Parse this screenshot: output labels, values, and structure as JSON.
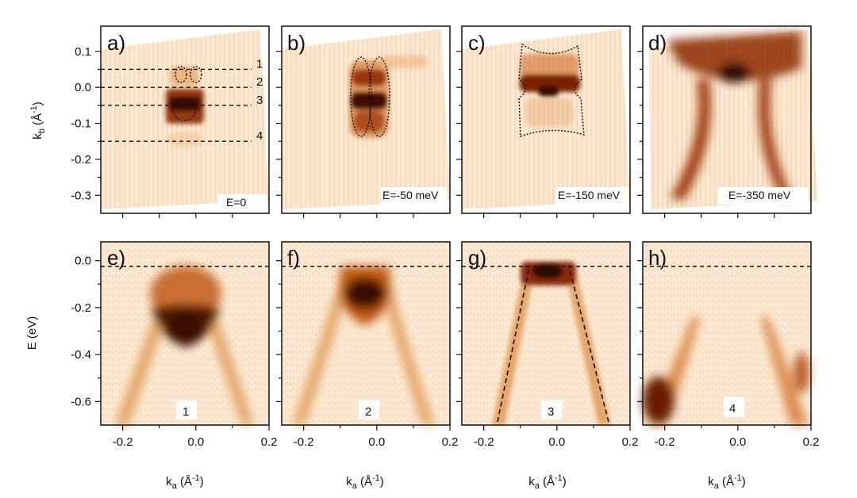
{
  "figure": {
    "caption": "",
    "colors": {
      "dark": "#3a0c04",
      "mid": "#b44a0c",
      "light": "#fbe2c4",
      "bg": "#fdf3e6"
    }
  },
  "chart_data": [
    {
      "type": "heatmap",
      "panel": "a)",
      "energy_label": "E=0",
      "x_range": [
        -0.26,
        0.2
      ],
      "y_range": [
        -0.35,
        0.17
      ],
      "ylabel": "k",
      "ylabel_sub": "b",
      "ylabel_unit": " (Å",
      "ylabel_sup": "-1",
      "ylabel_close": ")",
      "yticks": [
        {
          "v": 0.1,
          "t": "0.1"
        },
        {
          "v": 0.0,
          "t": "0.0"
        },
        {
          "v": -0.1,
          "t": "-0.1"
        },
        {
          "v": -0.2,
          "t": "-0.2"
        },
        {
          "v": -0.3,
          "t": "-0.3"
        }
      ],
      "xticks": [
        -0.2,
        -0.1,
        0.0,
        0.1
      ],
      "cut_lines": [
        {
          "k": 0.05,
          "label": "1"
        },
        {
          "k": 0.0,
          "label": "2"
        },
        {
          "k": -0.05,
          "label": "3"
        },
        {
          "k": -0.15,
          "label": "4"
        }
      ]
    },
    {
      "type": "heatmap",
      "panel": "b)",
      "energy_label": "E=-50 meV",
      "x_range": [
        -0.26,
        0.2
      ],
      "y_range": [
        -0.35,
        0.17
      ]
    },
    {
      "type": "heatmap",
      "panel": "c)",
      "energy_label": "E=-150 meV",
      "x_range": [
        -0.26,
        0.2
      ],
      "y_range": [
        -0.35,
        0.17
      ]
    },
    {
      "type": "heatmap",
      "panel": "d)",
      "energy_label": "E=-350 meV",
      "x_range": [
        -0.26,
        0.2
      ],
      "y_range": [
        -0.35,
        0.17
      ]
    },
    {
      "type": "heatmap",
      "panel": "e)",
      "cut_label": "1",
      "x_range": [
        -0.26,
        0.2
      ],
      "y_range": [
        -0.7,
        0.08
      ],
      "ylabel": "E (eV)",
      "yticks": [
        {
          "v": 0.0,
          "t": "0.0"
        },
        {
          "v": -0.2,
          "t": "-0.2"
        },
        {
          "v": -0.4,
          "t": "-0.4"
        },
        {
          "v": -0.6,
          "t": "-0.6"
        }
      ],
      "xticks": [
        {
          "v": -0.2,
          "t": "-0.2"
        },
        {
          "v": 0.0,
          "t": "0.0"
        },
        {
          "v": 0.2,
          "t": "0.2"
        }
      ],
      "xlabel": "k",
      "xlabel_sub": "a",
      "xlabel_unit": " (Å",
      "xlabel_sup": "-1",
      "xlabel_close": ")",
      "fermi_level": 0.0
    },
    {
      "type": "heatmap",
      "panel": "f)",
      "cut_label": "2",
      "x_range": [
        -0.26,
        0.2
      ],
      "y_range": [
        -0.7,
        0.08
      ],
      "xticks": [
        {
          "v": -0.2,
          "t": "-0.2"
        },
        {
          "v": 0.0,
          "t": "0.0"
        },
        {
          "v": 0.2,
          "t": "0.2"
        }
      ],
      "xlabel": "k",
      "xlabel_sub": "a",
      "xlabel_unit": " (Å",
      "xlabel_sup": "-1",
      "xlabel_close": ")",
      "fermi_level": 0.0
    },
    {
      "type": "heatmap",
      "panel": "g)",
      "cut_label": "3",
      "x_range": [
        -0.26,
        0.2
      ],
      "y_range": [
        -0.7,
        0.08
      ],
      "xticks": [
        {
          "v": -0.2,
          "t": "-0.2"
        },
        {
          "v": 0.0,
          "t": "0.0"
        },
        {
          "v": 0.2,
          "t": "0.2"
        }
      ],
      "xlabel": "k",
      "xlabel_sub": "a",
      "xlabel_unit": " (Å",
      "xlabel_sup": "-1",
      "xlabel_close": ")",
      "fermi_level": 0.0
    },
    {
      "type": "heatmap",
      "panel": "h)",
      "cut_label": "4",
      "x_range": [
        -0.26,
        0.2
      ],
      "y_range": [
        -0.7,
        0.08
      ],
      "xticks": [
        {
          "v": -0.2,
          "t": "-0.2"
        },
        {
          "v": 0.0,
          "t": "0.0"
        },
        {
          "v": 0.2,
          "t": "0.2"
        }
      ],
      "xlabel": "k",
      "xlabel_sub": "a",
      "xlabel_unit": " (Å",
      "xlabel_sup": "-1",
      "xlabel_close": ")",
      "fermi_level": 0.0
    }
  ]
}
